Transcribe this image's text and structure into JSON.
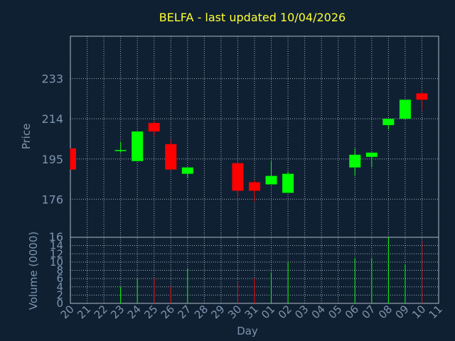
{
  "chart_data": {
    "type": "candlestick",
    "title": "BELFA - last updated 10/04/2026",
    "xlabel": "Day",
    "ylabel": "Price",
    "volume_label": "Volume (0000)",
    "x_ticks": [
      "20",
      "21",
      "22",
      "23",
      "24",
      "25",
      "26",
      "27",
      "28",
      "29",
      "30",
      "31",
      "01",
      "02",
      "03",
      "04",
      "05",
      "06",
      "07",
      "08",
      "09",
      "10",
      "11"
    ],
    "price_ticks": [
      176,
      195,
      214,
      233
    ],
    "price_ylim": [
      158,
      253
    ],
    "volume_ticks": [
      0,
      2,
      4,
      6,
      8,
      10,
      12,
      14,
      16
    ],
    "volume_ylim": [
      0,
      16
    ],
    "grid": true,
    "colors": {
      "up": "#00ff00",
      "down": "#ff0000",
      "background": "#0f2033",
      "title": "#ffff33",
      "text": "#7d95ad"
    },
    "candles": [
      {
        "day": "20",
        "open": 200,
        "high": 200,
        "low": 190,
        "close": 190,
        "volume": 0
      },
      {
        "day": "23",
        "open": 199,
        "high": 203,
        "low": 198,
        "close": 199,
        "volume": 4
      },
      {
        "day": "24",
        "open": 194,
        "high": 208,
        "low": 194,
        "close": 208,
        "volume": 6
      },
      {
        "day": "25",
        "open": 212,
        "high": 213,
        "low": 206,
        "close": 208,
        "volume": 6
      },
      {
        "day": "26",
        "open": 202,
        "high": 204,
        "low": 190,
        "close": 190,
        "volume": 4
      },
      {
        "day": "27",
        "open": 188,
        "high": 191,
        "low": 186,
        "close": 191,
        "volume": 8.5
      },
      {
        "day": "30",
        "open": 193,
        "high": 193,
        "low": 177,
        "close": 180,
        "volume": 5
      },
      {
        "day": "31",
        "open": 184,
        "high": 185,
        "low": 175,
        "close": 180,
        "volume": 6
      },
      {
        "day": "01",
        "open": 183,
        "high": 194,
        "low": 183,
        "close": 187,
        "volume": 7.5
      },
      {
        "day": "02",
        "open": 179,
        "high": 189,
        "low": 179,
        "close": 188,
        "volume": 10
      },
      {
        "day": "06",
        "open": 191,
        "high": 200,
        "low": 187,
        "close": 197,
        "volume": 11
      },
      {
        "day": "07",
        "open": 196,
        "high": 198,
        "low": 191,
        "close": 198,
        "volume": 11
      },
      {
        "day": "08",
        "open": 211,
        "high": 214,
        "low": 209,
        "close": 214,
        "volume": 16
      },
      {
        "day": "09",
        "open": 214,
        "high": 223,
        "low": 214,
        "close": 223,
        "volume": 9.5
      },
      {
        "day": "10",
        "open": 226,
        "high": 227,
        "low": 218,
        "close": 223,
        "volume": 15
      }
    ]
  }
}
